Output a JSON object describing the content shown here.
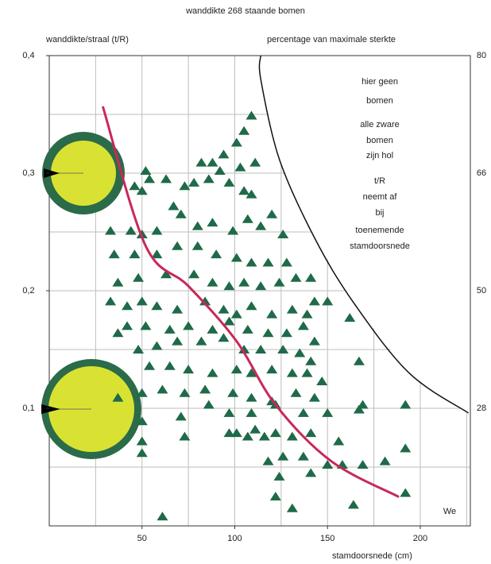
{
  "chart_data": {
    "type": "scatter",
    "title": "wanddikte 268 staande bomen",
    "ylabel": "wanddikte/straal (t/R)",
    "y2label": "percentage van maximale sterkte",
    "xlabel": "stamdoorsnede (cm)",
    "corner_label": "We",
    "color": "#1f6a48",
    "xlim": [
      0,
      227
    ],
    "ylim": [
      0,
      0.4
    ],
    "xticks": [
      50,
      100,
      150,
      200
    ],
    "yticks": [
      {
        "value": 0.4,
        "label": "0,4"
      },
      {
        "value": 0.3,
        "label": "0,3"
      },
      {
        "value": 0.2,
        "label": "0,2"
      },
      {
        "value": 0.1,
        "label": "0,1"
      }
    ],
    "y2_tick_labels": [
      {
        "y": 0.4,
        "label": 80
      },
      {
        "y": 0.3,
        "label": 66
      },
      {
        "y": 0.2,
        "label": 50
      },
      {
        "y": 0.1,
        "label": 28
      }
    ],
    "xgrid": [
      25,
      50,
      75,
      100,
      125,
      150,
      175,
      200,
      225
    ],
    "ygrid": [
      0.05,
      0.1,
      0.15,
      0.2,
      0.25,
      0.3,
      0.35
    ],
    "annotations": [
      [
        "hier geen",
        "bomen"
      ],
      [
        "alle zware",
        "bomen",
        "zijn hol"
      ],
      [
        "t/R",
        "neemt af",
        "bij",
        "toenemende",
        "stamdoorsnede"
      ]
    ],
    "curve": {
      "color": "#c8285a",
      "x": [
        29,
        52,
        75,
        101,
        122,
        152,
        188
      ],
      "values": [
        0.356,
        0.238,
        0.204,
        0.157,
        0.103,
        0.055,
        0.025
      ]
    },
    "boundary": {
      "color": "#111111",
      "x": [
        114,
        114,
        124,
        143,
        164,
        194,
        226
      ],
      "values": [
        0.4,
        0.38,
        0.312,
        0.245,
        0.19,
        0.13,
        0.096
      ]
    },
    "x": [
      109,
      105,
      101,
      94,
      82,
      88,
      103,
      111,
      52,
      54,
      46,
      50,
      63,
      73,
      78,
      86,
      92,
      97,
      105,
      109,
      33,
      44,
      50,
      58,
      67,
      71,
      80,
      88,
      99,
      107,
      114,
      120,
      126,
      35,
      46,
      58,
      69,
      80,
      90,
      101,
      109,
      118,
      128,
      37,
      48,
      63,
      78,
      88,
      97,
      105,
      114,
      124,
      133,
      141,
      150,
      33,
      42,
      50,
      58,
      69,
      84,
      94,
      101,
      109,
      120,
      131,
      139,
      143,
      42,
      52,
      65,
      75,
      88,
      97,
      107,
      118,
      128,
      137,
      143,
      162,
      37,
      48,
      58,
      69,
      82,
      94,
      105,
      114,
      126,
      135,
      141,
      54,
      65,
      75,
      88,
      101,
      109,
      120,
      131,
      139,
      147,
      37,
      50,
      61,
      73,
      84,
      99,
      109,
      120,
      133,
      143,
      167,
      50,
      71,
      86,
      97,
      109,
      122,
      137,
      150,
      167,
      192,
      50,
      73,
      97,
      107,
      116,
      122,
      131,
      141,
      156,
      169,
      50,
      118,
      126,
      137,
      150,
      158,
      169,
      181,
      192,
      124,
      141,
      122,
      131,
      164,
      192,
      61,
      111,
      101
    ],
    "values": [
      0.349,
      0.336,
      0.326,
      0.316,
      0.309,
      0.309,
      0.305,
      0.309,
      0.302,
      0.295,
      0.289,
      0.285,
      0.295,
      0.289,
      0.292,
      0.295,
      0.302,
      0.292,
      0.285,
      0.282,
      0.251,
      0.251,
      0.248,
      0.251,
      0.272,
      0.265,
      0.255,
      0.258,
      0.251,
      0.261,
      0.255,
      0.265,
      0.248,
      0.231,
      0.231,
      0.231,
      0.238,
      0.238,
      0.231,
      0.228,
      0.224,
      0.224,
      0.224,
      0.207,
      0.211,
      0.214,
      0.214,
      0.207,
      0.204,
      0.207,
      0.204,
      0.207,
      0.211,
      0.211,
      0.191,
      0.191,
      0.187,
      0.191,
      0.187,
      0.184,
      0.191,
      0.184,
      0.18,
      0.187,
      0.18,
      0.184,
      0.18,
      0.191,
      0.17,
      0.17,
      0.167,
      0.17,
      0.167,
      0.174,
      0.167,
      0.164,
      0.164,
      0.17,
      0.157,
      0.177,
      0.164,
      0.15,
      0.153,
      0.157,
      0.157,
      0.16,
      0.15,
      0.15,
      0.15,
      0.147,
      0.14,
      0.136,
      0.136,
      0.133,
      0.13,
      0.133,
      0.13,
      0.133,
      0.13,
      0.13,
      0.123,
      0.109,
      0.113,
      0.116,
      0.113,
      0.116,
      0.113,
      0.109,
      0.106,
      0.113,
      0.109,
      0.14,
      0.089,
      0.093,
      0.103,
      0.096,
      0.096,
      0.103,
      0.096,
      0.096,
      0.099,
      0.103,
      0.072,
      0.076,
      0.079,
      0.076,
      0.076,
      0.079,
      0.076,
      0.079,
      0.072,
      0.103,
      0.062,
      0.055,
      0.059,
      0.059,
      0.052,
      0.052,
      0.052,
      0.055,
      0.066,
      0.042,
      0.045,
      0.025,
      0.015,
      0.018,
      0.028,
      0.008,
      0.082,
      0.079
    ]
  }
}
